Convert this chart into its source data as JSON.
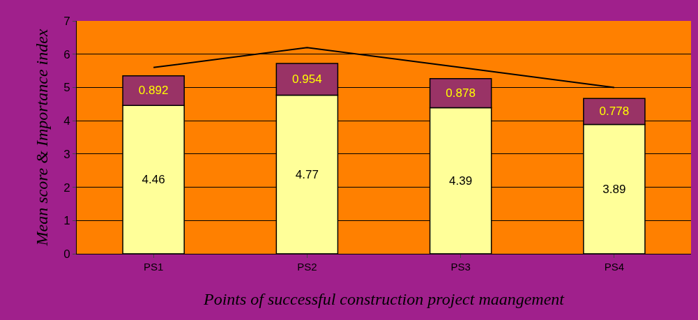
{
  "chart_data": {
    "type": "bar",
    "stacked": true,
    "xlabel": "Points of successful construction project maangement",
    "ylabel": "Mean score & Importance index",
    "categories": [
      "PS1",
      "PS2",
      "PS3",
      "PS4"
    ],
    "series": [
      {
        "color": "#ffff99",
        "values": [
          4.46,
          4.77,
          4.39,
          3.89
        ],
        "value_labels": [
          "4.46",
          "4.77",
          "4.39",
          "3.89"
        ]
      },
      {
        "color": "#993366",
        "values": [
          0.892,
          0.954,
          0.878,
          0.778
        ],
        "value_labels": [
          "0.892",
          "0.954",
          "0.878",
          "0.778"
        ]
      },
      {
        "type": "line",
        "color": "#000000",
        "values": [
          5.6,
          6.2,
          5.6,
          5.0
        ],
        "line_style": "solid",
        "marker": "none"
      }
    ],
    "ylim": [
      0,
      7
    ],
    "yticks": [
      0,
      1,
      2,
      3,
      4,
      5,
      6,
      7
    ],
    "grid": "y",
    "legend": false
  }
}
